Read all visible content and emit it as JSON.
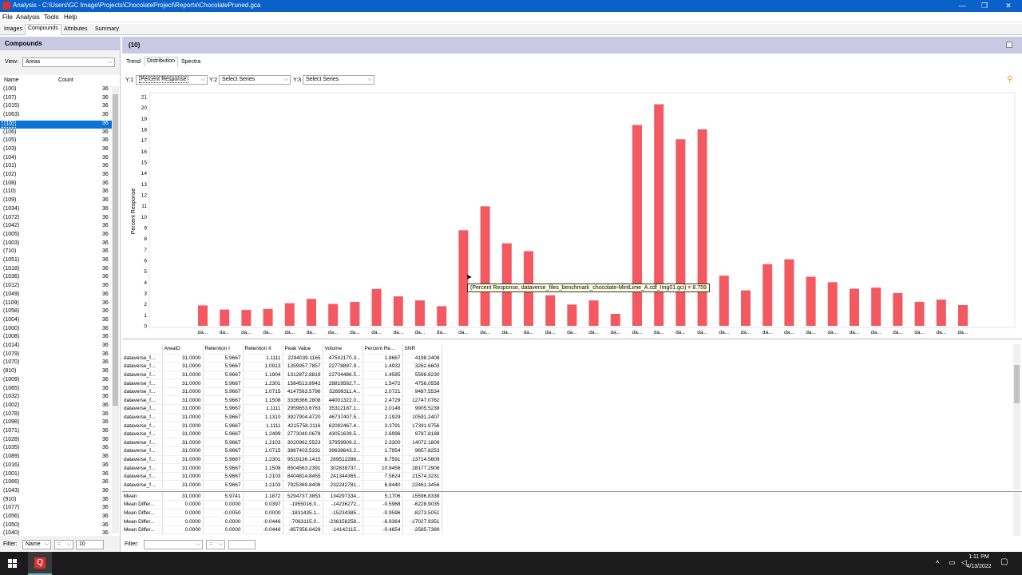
{
  "window": {
    "title": "Analysis - C:\\Users\\GC Image\\Projects\\ChocolateProject\\Reports\\ChocolatePruned.gca",
    "minimize": "—",
    "restore": "❐",
    "close": "✕"
  },
  "menu": [
    "File",
    "Analysis",
    "Tools",
    "Help"
  ],
  "top_tabs": [
    "Images",
    "Compounds",
    "Attributes",
    "Summary"
  ],
  "left": {
    "header": "Compounds",
    "view_label": "View:",
    "view_value": "Areas",
    "col_name": "Name",
    "col_count": "Count",
    "rows": [
      [
        "(100)",
        "36"
      ],
      [
        "(107)",
        "36"
      ],
      [
        "(1015)",
        "36"
      ],
      [
        "(1063)",
        "36"
      ],
      [
        "(10)",
        "36"
      ],
      [
        "(106)",
        "36"
      ],
      [
        "(105)",
        "36"
      ],
      [
        "(103)",
        "36"
      ],
      [
        "(104)",
        "36"
      ],
      [
        "(101)",
        "36"
      ],
      [
        "(102)",
        "36"
      ],
      [
        "(108)",
        "36"
      ],
      [
        "(110)",
        "36"
      ],
      [
        "(109)",
        "36"
      ],
      [
        "(1034)",
        "36"
      ],
      [
        "(1072)",
        "36"
      ],
      [
        "(1042)",
        "36"
      ],
      [
        "(1005)",
        "36"
      ],
      [
        "(1003)",
        "36"
      ],
      [
        "(710)",
        "36"
      ],
      [
        "(1051)",
        "36"
      ],
      [
        "(1018)",
        "36"
      ],
      [
        "(1036)",
        "36"
      ],
      [
        "(1012)",
        "36"
      ],
      [
        "(1049)",
        "36"
      ],
      [
        "(1109)",
        "36"
      ],
      [
        "(1058)",
        "36"
      ],
      [
        "(1004)",
        "36"
      ],
      [
        "(1000)",
        "36"
      ],
      [
        "(1008)",
        "36"
      ],
      [
        "(1014)",
        "36"
      ],
      [
        "(1079)",
        "36"
      ],
      [
        "(1070)",
        "36"
      ],
      [
        "(810)",
        "36"
      ],
      [
        "(1009)",
        "36"
      ],
      [
        "(1065)",
        "36"
      ],
      [
        "(1032)",
        "36"
      ],
      [
        "(1002)",
        "36"
      ],
      [
        "(1078)",
        "36"
      ],
      [
        "(1098)",
        "36"
      ],
      [
        "(1071)",
        "36"
      ],
      [
        "(1028)",
        "36"
      ],
      [
        "(1035)",
        "36"
      ],
      [
        "(1089)",
        "36"
      ],
      [
        "(1016)",
        "36"
      ],
      [
        "(1001)",
        "36"
      ],
      [
        "(1066)",
        "36"
      ],
      [
        "(1043)",
        "36"
      ],
      [
        "(910)",
        "36"
      ],
      [
        "(1077)",
        "36"
      ],
      [
        "(1056)",
        "36"
      ],
      [
        "(1050)",
        "36"
      ],
      [
        "(1040)",
        "36"
      ]
    ],
    "selected_index": 4,
    "filter_label": "Filter:",
    "filter_field": "Name",
    "filter_op": "=",
    "filter_value": "10"
  },
  "right": {
    "header": "(10)",
    "sub_tabs": [
      "Trend",
      "Distribution",
      "Spectra"
    ],
    "active_sub_tab": 1,
    "y1_label": "Y:1",
    "y1_value": "Percent Response",
    "y2_label": "Y:2",
    "y2_value": "Select Series",
    "y3_label": "Y:3",
    "y3_value": "Select Series",
    "filter_label": "Filter:",
    "filter_field": "",
    "filter_op": "="
  },
  "tooltip": "(Percent Response, dataverse_files_benchmark_chocolate-MintLime_A.cdf_Img01.gci) = 8.759",
  "chart_data": {
    "type": "bar",
    "ylabel": "Percent Response",
    "ylim": [
      0,
      21
    ],
    "yticks": [
      0,
      1,
      2,
      3,
      4,
      5,
      6,
      7,
      8,
      9,
      10,
      11,
      12,
      13,
      14,
      15,
      16,
      17,
      18,
      19,
      20,
      21
    ],
    "category_label": "da...",
    "values": [
      1.87,
      1.49,
      1.46,
      1.55,
      2.07,
      2.47,
      2.01,
      2.19,
      3.38,
      2.7,
      2.33,
      1.8,
      8.76,
      10.95,
      7.56,
      6.84,
      2.8,
      1.95,
      2.33,
      1.1,
      18.4,
      20.3,
      17.1,
      18.0,
      4.6,
      3.25,
      5.65,
      6.1,
      4.5,
      4.0,
      3.4,
      3.5,
      3.0,
      2.2,
      2.4,
      1.9
    ],
    "bar_color": "#f25961",
    "grid": false
  },
  "grid": {
    "columns": [
      "",
      "AreaID",
      "Retention I",
      "Retention II",
      "Peak Value",
      "Volume",
      "Percent Re...",
      "SNR"
    ],
    "rows": [
      [
        "dataverse_f...",
        "31.0000",
        "5.9667",
        "1.1111",
        "2294039.1165",
        "47502170.3...",
        "1.8667",
        "4198.2408"
      ],
      [
        "dataverse_f...",
        "31.0000",
        "5.9667",
        "1.0913",
        "1359957.7857",
        "22778897.9...",
        "1.4932",
        "3262.6603"
      ],
      [
        "dataverse_f...",
        "31.0000",
        "5.9667",
        "1.1904",
        "1312872.8819",
        "22704486.5...",
        "1.4585",
        "5598.8230"
      ],
      [
        "dataverse_f...",
        "31.0000",
        "5.9667",
        "1.2301",
        "1584513.8942",
        "28819582.7...",
        "1.5472",
        "4756.0558"
      ],
      [
        "dataverse_f...",
        "31.0000",
        "5.9667",
        "1.0715",
        "4147563.5796",
        "52699311.4...",
        "2.0721",
        "9487.5534"
      ],
      [
        "dataverse_f...",
        "31.0000",
        "5.9667",
        "1.1508",
        "3336366.2808",
        "44001322.0...",
        "2.4729",
        "12747.0762"
      ],
      [
        "dataverse_f...",
        "31.0000",
        "5.9667",
        "1.1111",
        "2959653.6763",
        "35312187.1...",
        "2.0148",
        "9905.5238"
      ],
      [
        "dataverse_f...",
        "31.0000",
        "5.9667",
        "1.1310",
        "3927904.4720",
        "46737407.5...",
        "2.1929",
        "10591.2407"
      ],
      [
        "dataverse_f...",
        "31.0000",
        "5.9667",
        "1.1111",
        "4215758.2116",
        "62092467.4...",
        "3.3791",
        "17391.9756"
      ],
      [
        "dataverse_f...",
        "31.0000",
        "5.9667",
        "1.2499",
        "2773040.0678",
        "43051639.5...",
        "2.6996",
        "9787.8188"
      ],
      [
        "dataverse_f...",
        "31.0000",
        "5.9667",
        "1.2103",
        "3020962.5523",
        "37959909.2...",
        "2.3300",
        "14072.1809"
      ],
      [
        "dataverse_f...",
        "31.0000",
        "5.9667",
        "1.0715",
        "3867403.5331",
        "39638643.2...",
        "1.7954",
        "9657.8253"
      ],
      [
        "dataverse_f...",
        "31.0000",
        "5.9667",
        "1.2301",
        "9519136.1415",
        "289512286...",
        "8.7591",
        "13714.5609"
      ],
      [
        "dataverse_f...",
        "31.0000",
        "5.9667",
        "1.1508",
        "8504563.2391",
        "302838737...",
        "10.9456",
        "28177.2906"
      ],
      [
        "dataverse_f...",
        "31.0000",
        "5.9667",
        "1.2103",
        "8404814.8455",
        "241344365...",
        "7.5624",
        "21574.3231"
      ],
      [
        "dataverse_f...",
        "31.0000",
        "5.9667",
        "1.2103",
        "7925369.8408",
        "232242781...",
        "6.8440",
        "22461.3456"
      ]
    ]
  },
  "stats": {
    "rows": [
      [
        "Mean",
        "31.0000",
        "5.9741",
        "1.1872",
        "5294737.3853",
        "134297334...",
        "5.1706",
        "15596.8338"
      ],
      [
        "Mean Differ...",
        "0.0000",
        "0.0000",
        "0.0397",
        "-1955016.0...",
        "-14236272...",
        "-0.5968",
        "-6228.9035"
      ],
      [
        "Mean Differ...",
        "0.0000",
        "-0.0050",
        "0.0000",
        "-1831435.1...",
        "-15234385...",
        "-0.9596",
        "-8273.5051"
      ],
      [
        "Mean Differ...",
        "0.0000",
        "0.0000",
        "-0.0446",
        "-7063115.0...",
        "-236158258...",
        "-6.9364",
        "-17027.9351"
      ],
      [
        "Mean Differ...",
        "0.0000",
        "0.0000",
        "-0.0446",
        "-857356.6428",
        "-14142115...",
        "-0.4654",
        "-2585.7389"
      ]
    ]
  },
  "taskbar": {
    "time": "1:11 PM",
    "date": "4/13/2022"
  }
}
